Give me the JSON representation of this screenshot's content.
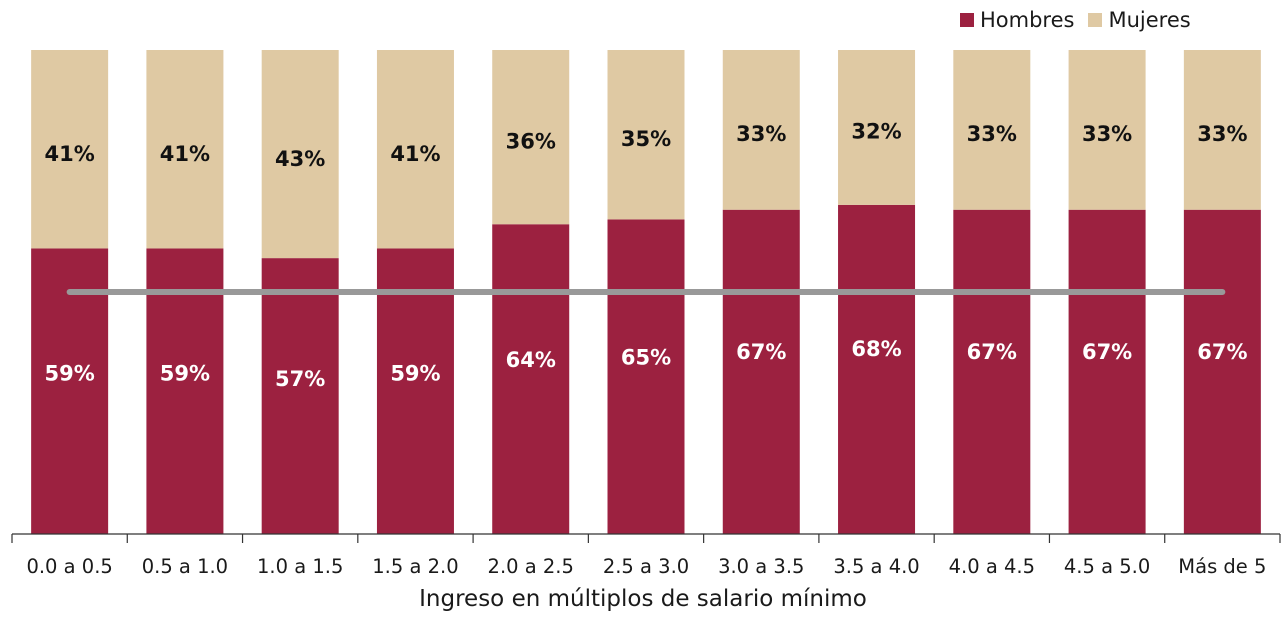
{
  "chart_data": {
    "type": "bar",
    "stacked": true,
    "percent": true,
    "categories": [
      "0.0 a 0.5",
      "0.5 a 1.0",
      "1.0 a 1.5",
      "1.5 a 2.0",
      "2.0 a 2.5",
      "2.5 a 3.0",
      "3.0 a 3.5",
      "3.5 a 4.0",
      "4.0 a 4.5",
      "4.5 a 5.0",
      "Más de 5"
    ],
    "series": [
      {
        "name": "Hombres",
        "color": "#9c2140",
        "values": [
          59,
          59,
          57,
          59,
          64,
          65,
          67,
          68,
          67,
          67,
          67
        ],
        "labels": [
          "59%",
          "59%",
          "57%",
          "59%",
          "64%",
          "65%",
          "67%",
          "68%",
          "67%",
          "67%",
          "67%"
        ]
      },
      {
        "name": "Mujeres",
        "color": "#dfc9a3",
        "values": [
          41,
          41,
          43,
          41,
          36,
          35,
          33,
          32,
          33,
          33,
          33
        ],
        "labels": [
          "41%",
          "41%",
          "43%",
          "41%",
          "36%",
          "35%",
          "33%",
          "32%",
          "33%",
          "33%",
          "33%"
        ]
      }
    ],
    "reference_line": {
      "value": 50,
      "color": "#999999"
    },
    "xlabel": "Ingreso en múltiplos de salario mínimo",
    "ylabel": "",
    "ylim": [
      0,
      100
    ],
    "grid": false,
    "legend_position": "top-right"
  }
}
